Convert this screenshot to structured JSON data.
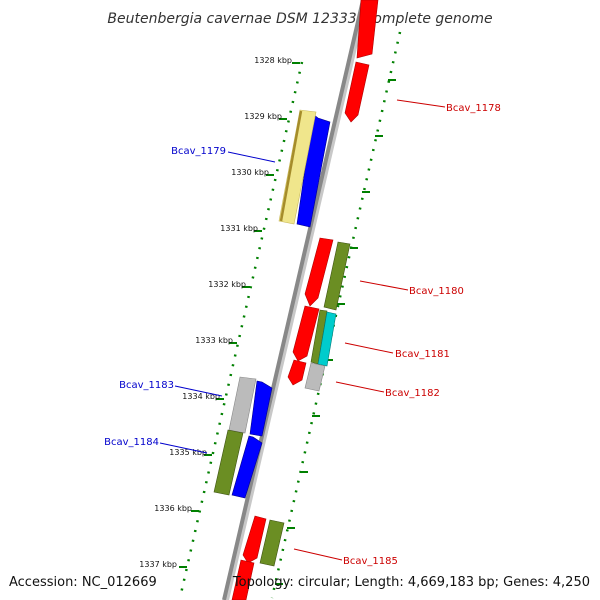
{
  "title": "Beutenbergia cavernae DSM 12333, complete genome",
  "accession": "Accession: NC_012669",
  "topology": "Topology: circular; Length: 4,669,183 bp; Genes: 4,250",
  "kbp_labels": [
    "1328 kbp",
    "1329 kbp",
    "1330 kbp",
    "1331 kbp",
    "1332 kbp",
    "1333 kbp",
    "1334 kbp",
    "1335 kbp",
    "1336 kbp",
    "1337 kbp"
  ],
  "gene_labels": {
    "bcav_1178": "Bcav_1178",
    "bcav_1179": "Bcav_1179",
    "bcav_1180": "Bcav_1180",
    "bcav_1181": "Bcav_1181",
    "bcav_1182": "Bcav_1182",
    "bcav_1183": "Bcav_1183",
    "bcav_1184": "Bcav_1184",
    "bcav_1185": "Bcav_1185"
  },
  "colors": {
    "backbone": "#888888",
    "forward_cds": "#ff0000",
    "reverse_cds": "#0000ff",
    "olive": "#6b8e23",
    "khaki": "#f0e68c",
    "grey": "#bbbbbb",
    "cyan": "#00cccc",
    "dotted": "#008000"
  }
}
